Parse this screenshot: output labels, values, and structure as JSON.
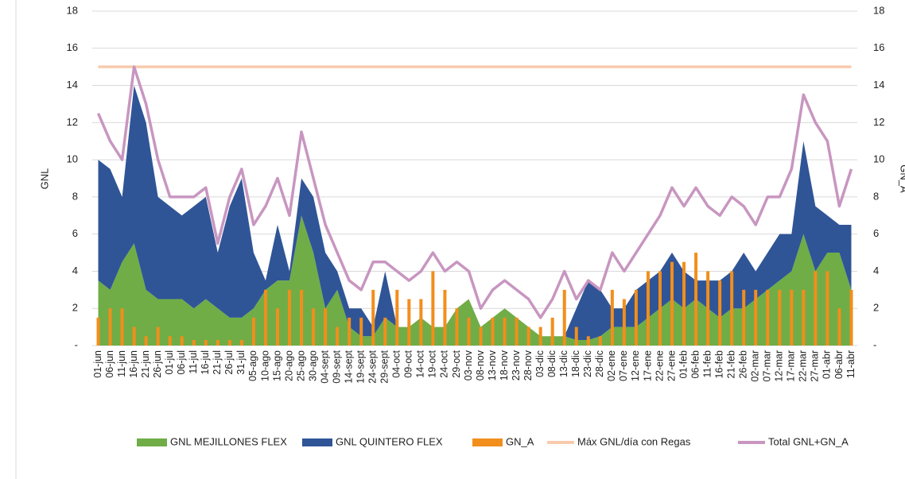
{
  "chart_data": {
    "type": "combo",
    "y_label": "GNL",
    "y2_label": "GN_A",
    "categories": [
      "01-jun",
      "06-jun",
      "11-jun",
      "16-jun",
      "21-jun",
      "26-jun",
      "01-jul",
      "06-jul",
      "11-jul",
      "16-jul",
      "21-jul",
      "26-jul",
      "31-jul",
      "05-ago",
      "10-ago",
      "15-ago",
      "20-ago",
      "25-ago",
      "30-ago",
      "04-sept",
      "09-sept",
      "14-sept",
      "19-sept",
      "24-sept",
      "29-sept",
      "04-oct",
      "09-oct",
      "14-oct",
      "19-oct",
      "24-oct",
      "29-oct",
      "03-nov",
      "08-nov",
      "13-nov",
      "18-nov",
      "23-nov",
      "28-nov",
      "03-dic",
      "08-dic",
      "13-dic",
      "18-dic",
      "23-dic",
      "28-dic",
      "02-ene",
      "07-ene",
      "12-ene",
      "17-ene",
      "22-ene",
      "27-ene",
      "01-feb",
      "06-feb",
      "11-feb",
      "16-feb",
      "21-feb",
      "26-feb",
      "02-mar",
      "07-mar",
      "12-mar",
      "17-mar",
      "22-mar",
      "27-mar",
      "01-abr",
      "06-abr",
      "11-abr"
    ],
    "series": [
      {
        "name": "GNL MEJILLONES FLEX",
        "kind": "area",
        "color": "#70ad47",
        "values": [
          3.5,
          3,
          4.5,
          5.5,
          3,
          2.5,
          2.5,
          2.5,
          2,
          2.5,
          2,
          1.5,
          1.5,
          2,
          3,
          3.5,
          3.5,
          7,
          5,
          2,
          3,
          1,
          0.5,
          0.5,
          1.5,
          1,
          1,
          1.5,
          1,
          1,
          2,
          2.5,
          1,
          1.5,
          2,
          1.5,
          1,
          0.5,
          0.5,
          0.5,
          0.3,
          0.3,
          0.5,
          1,
          1,
          1,
          1.5,
          2,
          2.5,
          2,
          2.5,
          2,
          1.5,
          2,
          2,
          2.5,
          3,
          3.5,
          4,
          6,
          4,
          5,
          5,
          3
        ]
      },
      {
        "name": "GNL QUINTERO FLEX",
        "kind": "area",
        "color": "#2f5597",
        "values": [
          6.5,
          6.5,
          3.5,
          8.5,
          9,
          5.5,
          5,
          4.5,
          5.5,
          5.5,
          3,
          6,
          7.5,
          3,
          0.5,
          3,
          0.5,
          2,
          3,
          3,
          1,
          1,
          1.5,
          0.5,
          2.5,
          0,
          0,
          0,
          0,
          0,
          0,
          0,
          0,
          0,
          0,
          0,
          0,
          0,
          0,
          0,
          1.7,
          3.2,
          2.5,
          1,
          1,
          2,
          2,
          2,
          2.5,
          2,
          1,
          1.5,
          2,
          2,
          3,
          1.5,
          2,
          2.5,
          2,
          5,
          3.5,
          2,
          1.5,
          3.5
        ]
      },
      {
        "name": "GN_A",
        "kind": "bar",
        "color": "#f28e1c",
        "values": [
          1.5,
          2,
          2,
          1,
          0.5,
          1,
          0.5,
          0.5,
          0.3,
          0.3,
          0.3,
          0.3,
          0.3,
          1.5,
          3,
          2,
          3,
          3,
          2,
          2,
          1,
          1.5,
          1.5,
          3,
          1.5,
          3,
          2.5,
          2.5,
          4,
          3,
          2,
          1.5,
          1,
          1.5,
          1.5,
          1.5,
          1,
          1,
          1.5,
          3,
          1,
          0.5,
          0.5,
          3,
          2.5,
          3,
          4,
          4,
          4.5,
          4.5,
          5,
          4,
          3.5,
          4,
          3,
          3,
          3,
          3,
          3,
          3,
          4,
          4,
          2,
          3
        ]
      },
      {
        "name": "Máx GNL/día con Regas",
        "kind": "line",
        "color": "#f8cbad",
        "values": [
          15,
          15,
          15,
          15,
          15,
          15,
          15,
          15,
          15,
          15,
          15,
          15,
          15,
          15,
          15,
          15,
          15,
          15,
          15,
          15,
          15,
          15,
          15,
          15,
          15,
          15,
          15,
          15,
          15,
          15,
          15,
          15,
          15,
          15,
          15,
          15,
          15,
          15,
          15,
          15,
          15,
          15,
          15,
          15,
          15,
          15,
          15,
          15,
          15,
          15,
          15,
          15,
          15,
          15,
          15,
          15,
          15,
          15,
          15,
          15,
          15,
          15,
          15,
          15
        ]
      },
      {
        "name": "Total GNL+GN_A",
        "kind": "line",
        "color": "#c896c0",
        "values": [
          12.5,
          11,
          10,
          15,
          13,
          10,
          8,
          8,
          8,
          8.5,
          5.5,
          8,
          9.5,
          6.5,
          7.5,
          9,
          7,
          11.5,
          9,
          6.5,
          5,
          3.5,
          3,
          4.5,
          4.5,
          4,
          3.5,
          4,
          5,
          4,
          4.5,
          4,
          2,
          3,
          3.5,
          3,
          2.5,
          1.5,
          2.5,
          4,
          2.5,
          3.5,
          3,
          5,
          4,
          5,
          6,
          7,
          8.5,
          7.5,
          8.5,
          7.5,
          7,
          8,
          7.5,
          6.5,
          8,
          8,
          9.5,
          13.5,
          12,
          11,
          7.5,
          9.5
        ]
      }
    ],
    "ylim": [
      0,
      18
    ],
    "yticks": [
      {
        "value": 0,
        "label": "-"
      },
      2,
      4,
      6,
      8,
      10,
      12,
      14,
      16,
      18
    ],
    "y2lim": [
      0,
      18
    ],
    "y2ticks": [
      {
        "value": 0,
        "label": "-"
      },
      2,
      4,
      6,
      8,
      10,
      12,
      14,
      16,
      18
    ],
    "grid": true
  }
}
